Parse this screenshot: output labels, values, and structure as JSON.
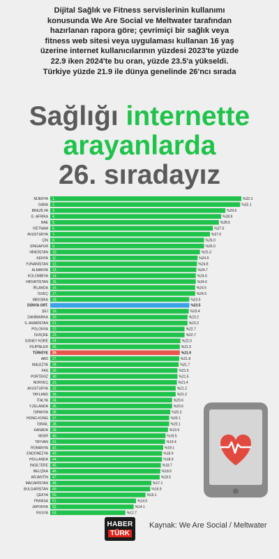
{
  "intro": {
    "line1": "Dijital Sağlık ve Fitness servislerinin kullanımı",
    "line2": "konusunda We Are Social ve Meltwater tarafından",
    "line3": "hazırlanan rapora göre; çevrimiçi bir sağlık veya",
    "line4": "fitness web sitesi veya uygulaması kullanan 16 yaş",
    "line5": "üzerine internet kullanıcılarının yüzdesi 2023'te yüzde",
    "line6": "22.9 iken 2024'te bu oran, yüzde 23.5'a yükseldi.",
    "line7": "Türkiye yüzde 21.9 ile dünya genelinde 26'ncı sırada"
  },
  "headline": {
    "part1": "Sağlığı ",
    "part2": "internette",
    "part3": "arayanlarda",
    "part4": "26. sıradayız"
  },
  "colors": {
    "bar": "#1fc24a",
    "world": "#3aa3e6",
    "turkey": "#e8554a",
    "headline_gray": "#5a5a5a",
    "headline_green": "#1fc24a"
  },
  "chart_data": {
    "type": "bar",
    "orientation": "horizontal",
    "categories": [
      "NİJERYA",
      "GANA",
      "BREZİLYA",
      "G. AFRİKA",
      "BAE",
      "VİETNAM",
      "AVUSTURYA",
      "ÇİN",
      "SİNGAPUR",
      "HİNDİSTAN",
      "KENYA",
      "YUNANİSTAN",
      "ALMANYA",
      "KOLOMBİYA",
      "HIRVATİSTAN",
      "İRLANDA",
      "İSVEÇ",
      "MEKSİKA",
      "DÜNYA ORT.",
      "ŞİLİ",
      "DANİMARKA",
      "S. ARABİSTAN",
      "POLONYA",
      "İSVİÇRE",
      "GÜNEY KORE",
      "FİLİPİNLER",
      "TÜRKİYE",
      "ABD",
      "MALEZYA",
      "FAS",
      "PORTEKİZ",
      "NORVEÇ",
      "AVUSTURYA",
      "TAYLAND",
      "İTALYA",
      "Y.ZELANDA",
      "İSPANYA",
      "HONG KONG",
      "İSRAİL",
      "KANADA",
      "MISIR",
      "TAYVAN",
      "ROMANYA",
      "ENDONEZYA",
      "HOLLANDA",
      "İNGİLTERE",
      "BELÇİKA",
      "ARJANTİN",
      "MACARİSTAN",
      "BULGARİSTAN",
      "ÇEKYA",
      "FRANSA",
      "JAPONYA",
      "RUSYA"
    ],
    "ranks": [
      "1.",
      "2.",
      "3.",
      "4.",
      "5.",
      "6.",
      "7.",
      "8.",
      "9.",
      "10.",
      "11.",
      "12.",
      "13.",
      "14.",
      "15.",
      "16.",
      "17.",
      "18.",
      "",
      "19.",
      "20.",
      "21.",
      "22.",
      "23.",
      "24.",
      "25.",
      "26.",
      "27.",
      "28.",
      "29.",
      "30.",
      "31.",
      "32.",
      "33.",
      "34.",
      "35.",
      "36.",
      "37.",
      "38.",
      "39.",
      "40.",
      "41.",
      "42.",
      "43.",
      "44.",
      "45.",
      "46.",
      "47.",
      "48.",
      "49.",
      "50.",
      "51.",
      "52.",
      "53."
    ],
    "values": [
      32.3,
      32.1,
      29.6,
      28.9,
      28.5,
      27.5,
      27.0,
      26.0,
      26.0,
      25.3,
      24.9,
      24.8,
      24.7,
      24.6,
      24.6,
      24.5,
      24.5,
      23.5,
      23.5,
      23.4,
      23.2,
      23.2,
      22.7,
      22.7,
      22.0,
      21.9,
      21.9,
      21.8,
      21.7,
      21.5,
      21.5,
      21.4,
      21.2,
      21.2,
      20.6,
      20.6,
      20.3,
      20.1,
      20.1,
      19.9,
      19.5,
      19.4,
      19.1,
      18.9,
      18.9,
      18.7,
      18.6,
      18.5,
      17.1,
      16.9,
      16.1,
      14.5,
      14.1,
      12.7
    ],
    "labels": [
      "%32.3",
      "%32.1",
      "%29.6",
      "%28.9",
      "%28.5",
      "%27.5",
      "%27.0",
      "%26.0",
      "%26.0",
      "%25.3",
      "%24.9",
      "%24.8",
      "%24.7",
      "%24.6",
      "%24.6",
      "%24.5",
      "%24.5",
      "%23.5",
      "%23.5",
      "%23.4",
      "%23.2",
      "%23.2",
      "%22.7",
      "%22.7",
      "%22.0",
      "%21.9",
      "%21.9",
      "%21.8",
      "%21.7",
      "%21.5",
      "%21.5",
      "%21.4",
      "%21.2",
      "%21.2",
      "%20.6",
      "%20.6",
      "%20.3",
      "%20.1",
      "%20.1",
      "%19.9",
      "%19.5",
      "%19.4",
      "%19.1",
      "%18.9",
      "%18.9",
      "%18.7",
      "%18.6",
      "%18.5",
      "%17.1",
      "%16.9",
      "%16.1",
      "%14.5",
      "%14.1",
      "%12.7"
    ],
    "highlight": {
      "DÜNYA ORT.": "world",
      "TÜRKİYE": "turkey"
    },
    "xlim": [
      0,
      32.3
    ]
  },
  "source": {
    "brand_top": "HABER",
    "brand_bottom": "TÜRK",
    "text": "Kaynak: We Are Social / Meltwater"
  }
}
